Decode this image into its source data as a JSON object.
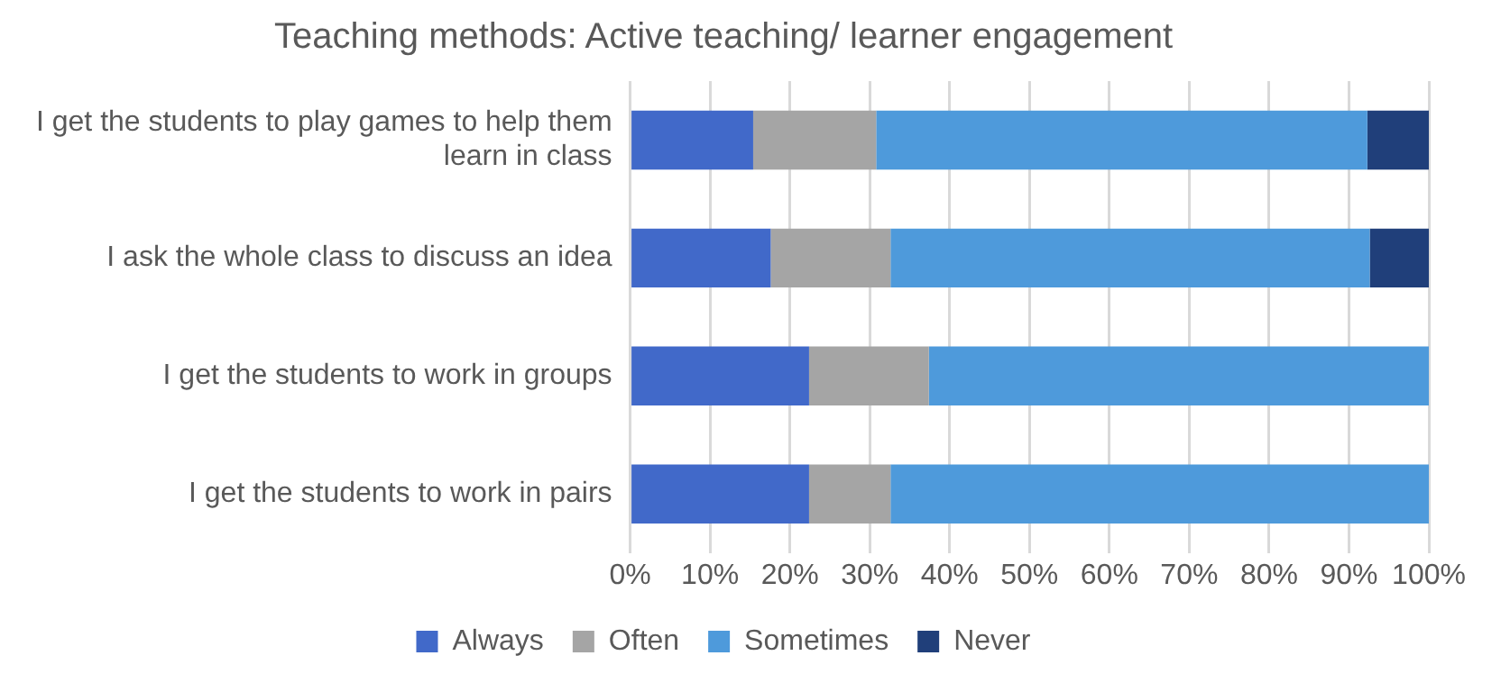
{
  "chart_data": {
    "type": "bar",
    "orientation": "horizontal",
    "stacked": true,
    "title": "Teaching methods: Active teaching/ learner engagement",
    "categories": [
      "I get the students to play games to help them learn in class",
      "I ask the whole class to discuss an idea",
      "I get the students to work in groups",
      "I get the students to work in pairs"
    ],
    "series": [
      {
        "name": "Always",
        "color": "#4169c9",
        "values": [
          15.4,
          17.6,
          22.4,
          22.4
        ]
      },
      {
        "name": "Often",
        "color": "#a5a5a5",
        "values": [
          15.4,
          15.0,
          15.0,
          10.2
        ]
      },
      {
        "name": "Sometimes",
        "color": "#4e9adb",
        "values": [
          61.5,
          60.0,
          62.6,
          67.4
        ]
      },
      {
        "name": "Never",
        "color": "#203f7a",
        "values": [
          7.7,
          7.4,
          0,
          0
        ]
      }
    ],
    "xlim": [
      0,
      100
    ],
    "xticks": [
      {
        "value": 0,
        "label": "0%"
      },
      {
        "value": 10,
        "label": "10%"
      },
      {
        "value": 20,
        "label": "20%"
      },
      {
        "value": 30,
        "label": "30%"
      },
      {
        "value": 40,
        "label": "40%"
      },
      {
        "value": 50,
        "label": "50%"
      },
      {
        "value": 60,
        "label": "60%"
      },
      {
        "value": 70,
        "label": "70%"
      },
      {
        "value": 80,
        "label": "80%"
      },
      {
        "value": 90,
        "label": "90%"
      },
      {
        "value": 100,
        "label": "100%"
      }
    ],
    "grid": "x",
    "legend": "bottom"
  }
}
